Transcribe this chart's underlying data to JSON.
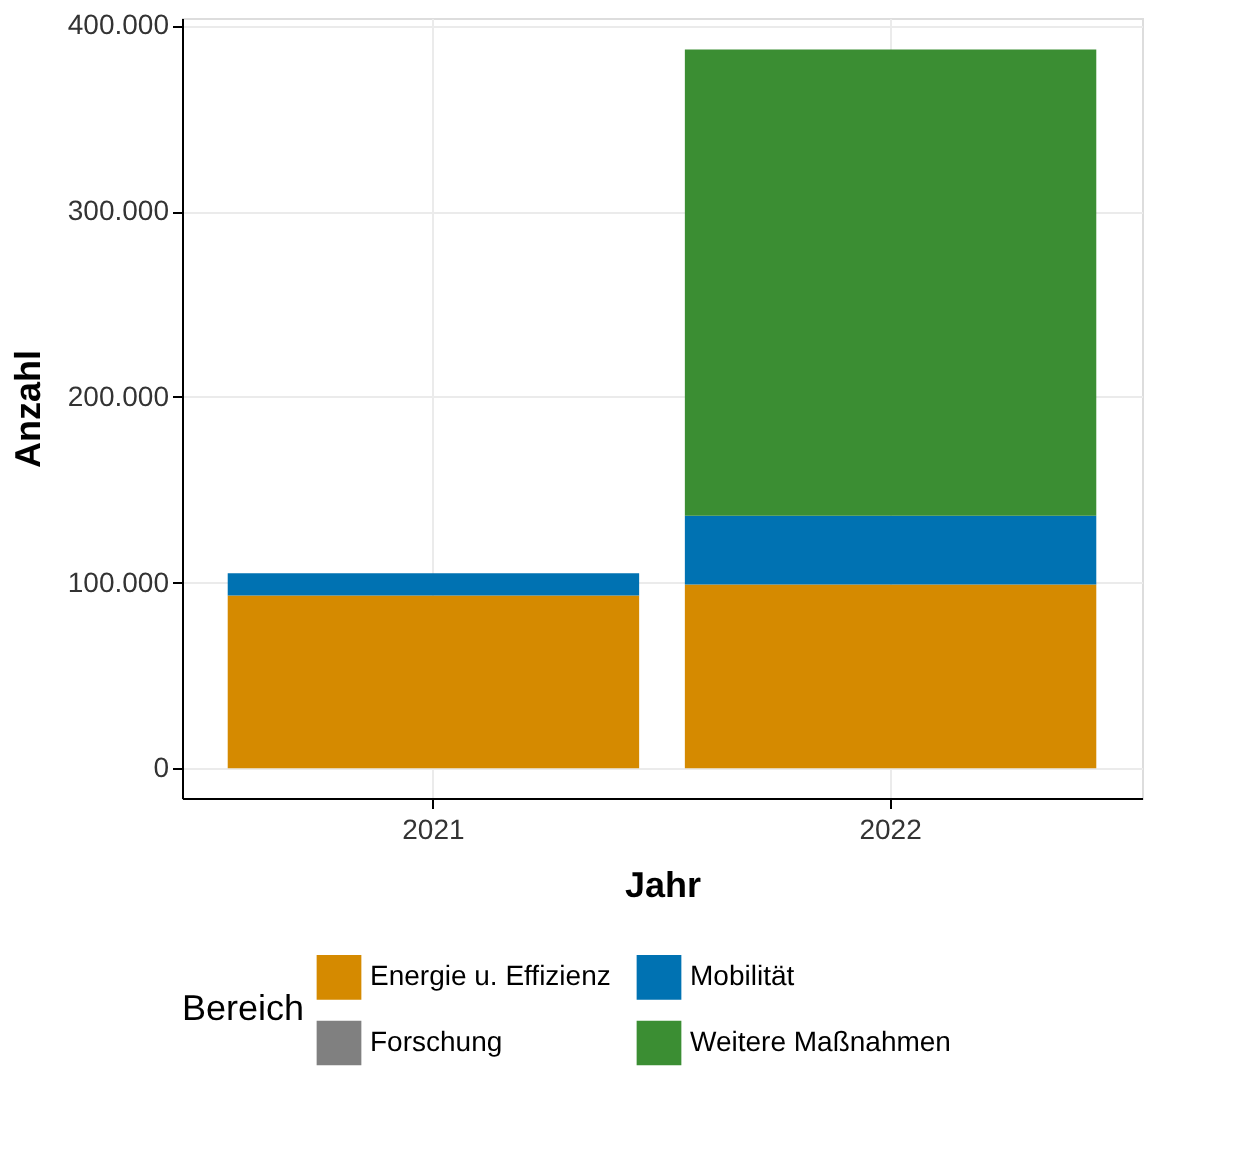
{
  "chart_data": {
    "type": "bar",
    "stacked": true,
    "xlabel": "Jahr",
    "ylabel": "Anzahl",
    "legend_title": "Bereich",
    "legend": "bottom",
    "grid": true,
    "categories": [
      "2021",
      "2022"
    ],
    "series": [
      {
        "name": "Energie u. Effizienz",
        "color": "#d58a00",
        "values": [
          93000,
          99000
        ]
      },
      {
        "name": "Forschung",
        "color": "#808080",
        "values": [
          0,
          0
        ]
      },
      {
        "name": "Mobilität",
        "color": "#0072b2",
        "values": [
          12000,
          37000
        ]
      },
      {
        "name": "Weitere Maßnahmen",
        "color": "#3b8e33",
        "values": [
          0,
          251000
        ]
      }
    ],
    "ylim": [
      -16000,
      404000
    ],
    "yticks": [
      {
        "value": 0,
        "label": "0"
      },
      {
        "value": 100000,
        "label": "100.000"
      },
      {
        "value": 200000,
        "label": "200.000"
      },
      {
        "value": 300000,
        "label": "300.000"
      },
      {
        "value": 400000,
        "label": "400.000"
      }
    ]
  }
}
